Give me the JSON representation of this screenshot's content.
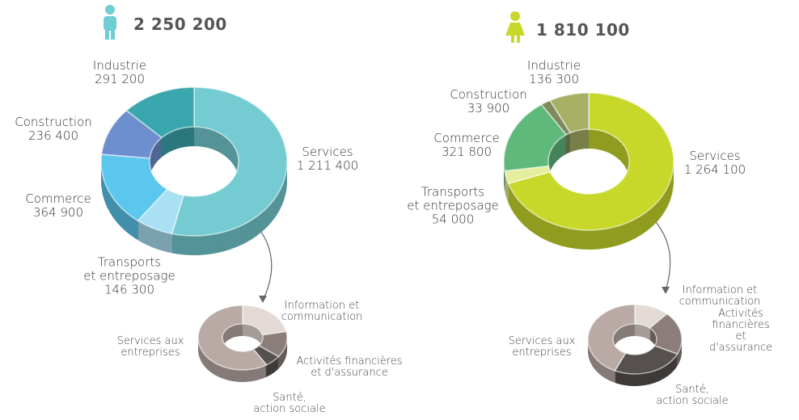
{
  "chart_data": [
    {
      "type": "donut",
      "title": "2 250 200",
      "categories": [
        "Services",
        "Transports\net entreposage",
        "Commerce",
        "Construction",
        "Industrie"
      ],
      "values": [
        1211400,
        146300,
        364900,
        236400,
        291200
      ],
      "value_labels": [
        "1 211 400",
        "146 300",
        "364 900",
        "236 400",
        "291 200"
      ],
      "colors": [
        "#74ccd2",
        "#a9e0f3",
        "#5cc7ee",
        "#6e8fce",
        "#3aa6ad"
      ]
    },
    {
      "type": "donut",
      "title": "1 810 100",
      "categories": [
        "Services",
        "Transports\net entreposage",
        "Commerce",
        "Construction",
        "Industrie"
      ],
      "values": [
        1264100,
        54000,
        321800,
        33900,
        136300
      ],
      "value_labels": [
        "1 264 100",
        "54 000",
        "321 800",
        "33 900",
        "136 300"
      ],
      "colors": [
        "#c8d82b",
        "#e4ee9c",
        "#5fb97b",
        "#7e8a5b",
        "#a7b064"
      ]
    },
    {
      "type": "donut",
      "categories": [
        "Information et\ncommunication",
        "Activités financières\net d'assurance",
        "Santé,\naction sociale",
        "Services aux\nentreprises"
      ],
      "values": [
        22,
        13,
        6,
        59
      ],
      "colors": [
        "#e3d9d5",
        "#8b7d79",
        "#56504e",
        "#b9aaa5"
      ]
    },
    {
      "type": "donut",
      "categories": [
        "Information et\ncommunication",
        "Activités financières\net d'assurance",
        "Santé,\naction sociale",
        "Services aux\nentreprises"
      ],
      "values": [
        12,
        20,
        25,
        43
      ],
      "colors": [
        "#e3d9d5",
        "#8b7d79",
        "#56504e",
        "#b9aaa5"
      ]
    }
  ]
}
